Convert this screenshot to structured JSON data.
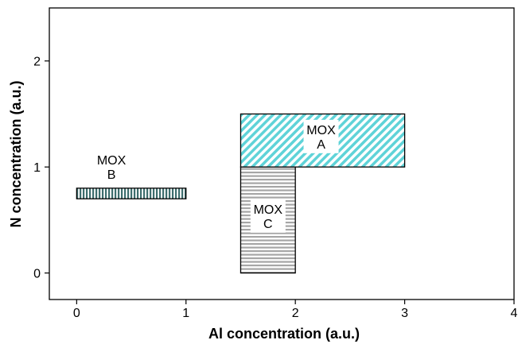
{
  "chart_data": {
    "type": "region",
    "xlabel": "Al concentration (a.u.)",
    "ylabel": "N concentration (a.u.)",
    "xlim": [
      -0.25,
      4.0
    ],
    "ylim": [
      -0.25,
      2.5
    ],
    "xticks": [
      0,
      1,
      2,
      3,
      4
    ],
    "yticks": [
      0,
      1,
      2
    ],
    "grid": false,
    "regions": [
      {
        "id": "mox-a",
        "label_lines": [
          "MOX",
          "A"
        ],
        "x": [
          1.5,
          3.0
        ],
        "y": [
          1.0,
          1.5
        ],
        "pattern": "diagonal",
        "color": "#5fd3d8"
      },
      {
        "id": "mox-b",
        "label_lines": [
          "MOX",
          "B"
        ],
        "x": [
          0.0,
          1.0
        ],
        "y": [
          0.7,
          0.8
        ],
        "pattern": "vertical",
        "color": "#3e6e6e"
      },
      {
        "id": "mox-c",
        "label_lines": [
          "MOX",
          "C"
        ],
        "x": [
          1.5,
          2.0
        ],
        "y": [
          0.0,
          1.0
        ],
        "pattern": "horizontal",
        "color": "#a6a6a6"
      }
    ]
  }
}
